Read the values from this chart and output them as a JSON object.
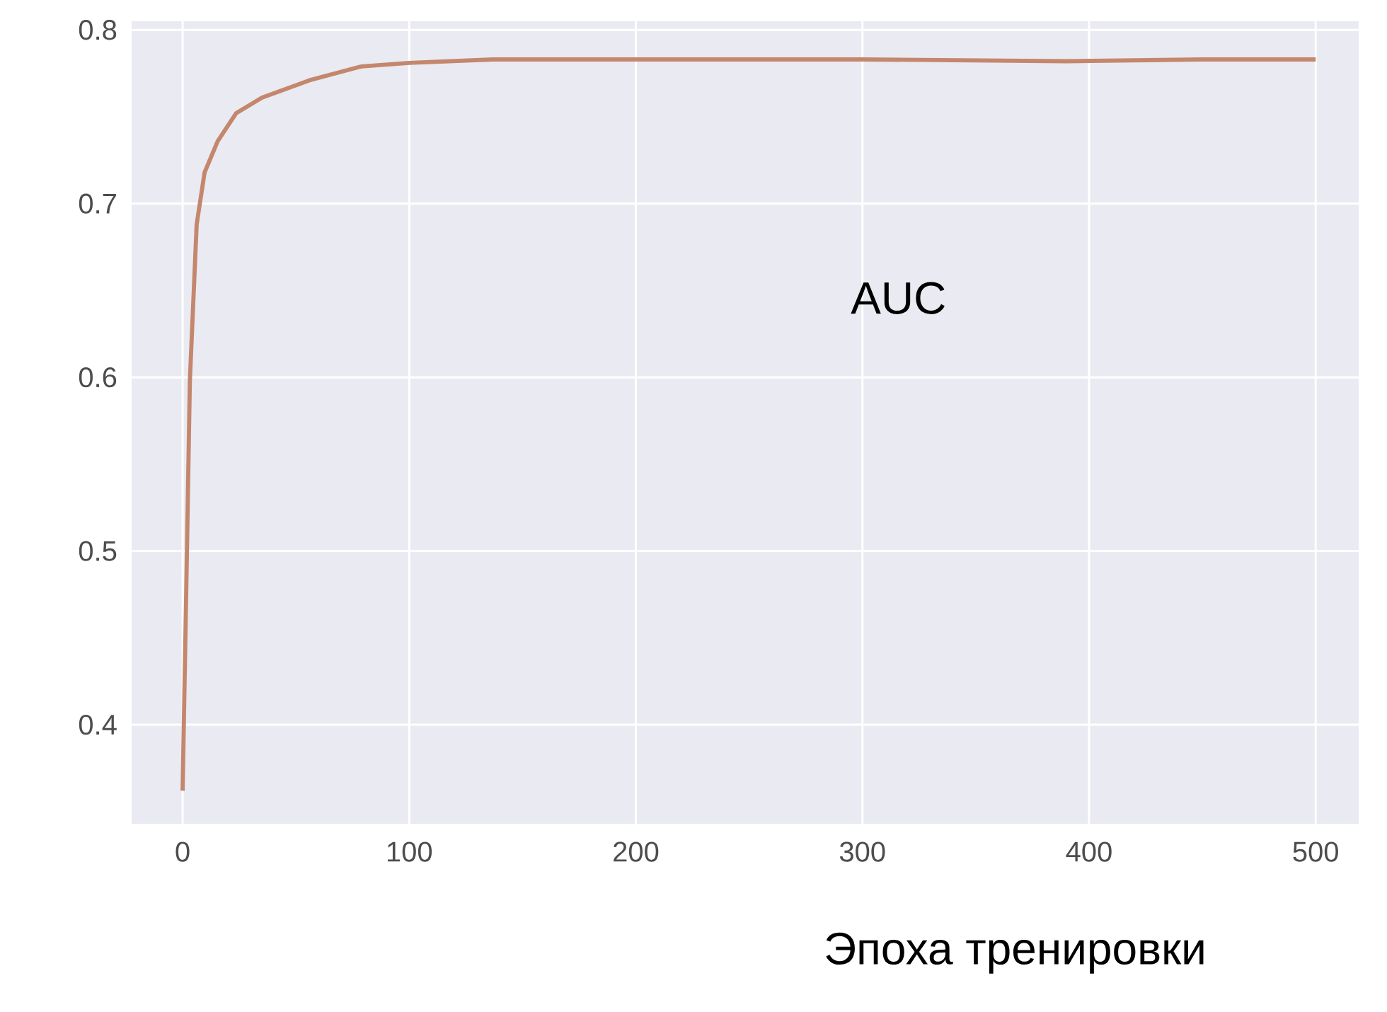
{
  "chart_data": {
    "type": "line",
    "xlabel": "Эпоха тренировки",
    "annotations": [
      "AUC"
    ],
    "xlim": [
      -22.5,
      519
    ],
    "ylim": [
      0.343,
      0.805
    ],
    "xticks": [
      0,
      100,
      200,
      300,
      400,
      500
    ],
    "yticks": [
      0.4,
      0.5,
      0.6,
      0.7,
      0.8
    ],
    "grid": true,
    "series": [
      {
        "color": "#c4876d",
        "x": [
          0,
          1.6,
          3.2,
          6.2,
          9.7,
          15.5,
          23.6,
          35,
          56,
          79,
          100,
          137,
          200,
          300,
          390,
          450,
          500
        ],
        "values": [
          0.362,
          0.477,
          0.598,
          0.688,
          0.718,
          0.736,
          0.752,
          0.761,
          0.771,
          0.779,
          0.781,
          0.783,
          0.783,
          0.783,
          0.782,
          0.783,
          0.783
        ]
      }
    ]
  }
}
